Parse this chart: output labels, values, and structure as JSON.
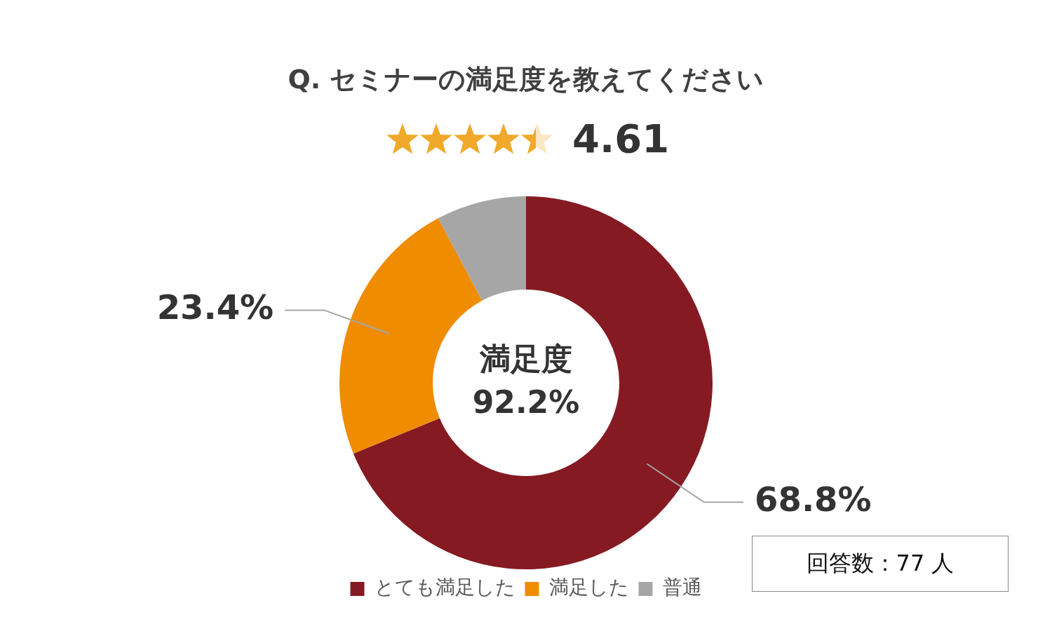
{
  "chart_data": {
    "type": "donut",
    "title": "Q. セミナーの満足度を教えてください",
    "categories": [
      "とても満足した",
      "満足した",
      "普通"
    ],
    "values": [
      68.8,
      23.4,
      7.8
    ],
    "colors": [
      "#861a22",
      "#f08c00",
      "#a6a6a6"
    ],
    "value_labels": [
      "68.8%",
      "23.4%",
      null
    ],
    "legend": "bottom",
    "annotations": [
      "満足度",
      "92.2%",
      "4.61",
      "回答数：77 人"
    ]
  }
}
